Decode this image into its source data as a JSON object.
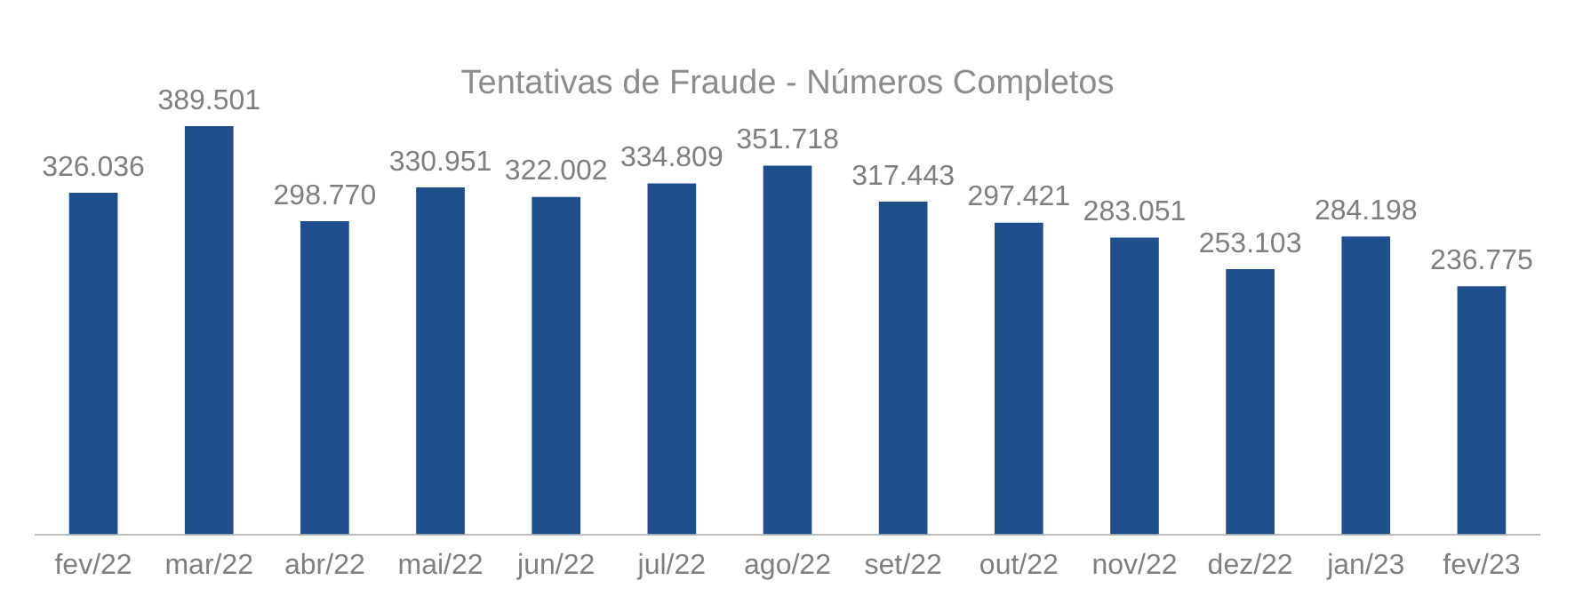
{
  "chart_data": {
    "type": "bar",
    "title": "Tentativas de Fraude - Números Completos",
    "categories": [
      "fev/22",
      "mar/22",
      "abr/22",
      "mai/22",
      "jun/22",
      "jul/22",
      "ago/22",
      "set/22",
      "out/22",
      "nov/22",
      "dez/22",
      "jan/23",
      "fev/23"
    ],
    "values": [
      326036,
      389501,
      298770,
      330951,
      322002,
      334809,
      351718,
      317443,
      297421,
      283051,
      253103,
      284198,
      236775
    ],
    "value_labels": [
      "326.036",
      "389.501",
      "298.770",
      "330.951",
      "322.002",
      "334.809",
      "351.718",
      "317.443",
      "297.421",
      "283.051",
      "253.103",
      "284.198",
      "236.775"
    ],
    "color": "#1f4e8c",
    "grid": false,
    "legend": false
  }
}
